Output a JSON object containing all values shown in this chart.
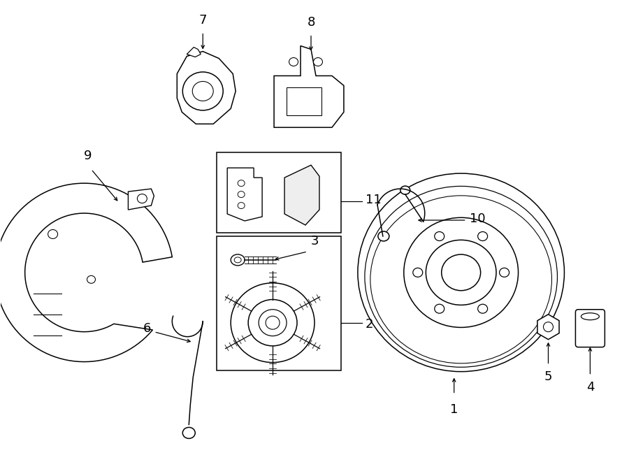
{
  "bg_color": "#ffffff",
  "line_color": "#000000",
  "fig_width": 9.0,
  "fig_height": 6.61,
  "dpi": 100,
  "lw": 1.1
}
